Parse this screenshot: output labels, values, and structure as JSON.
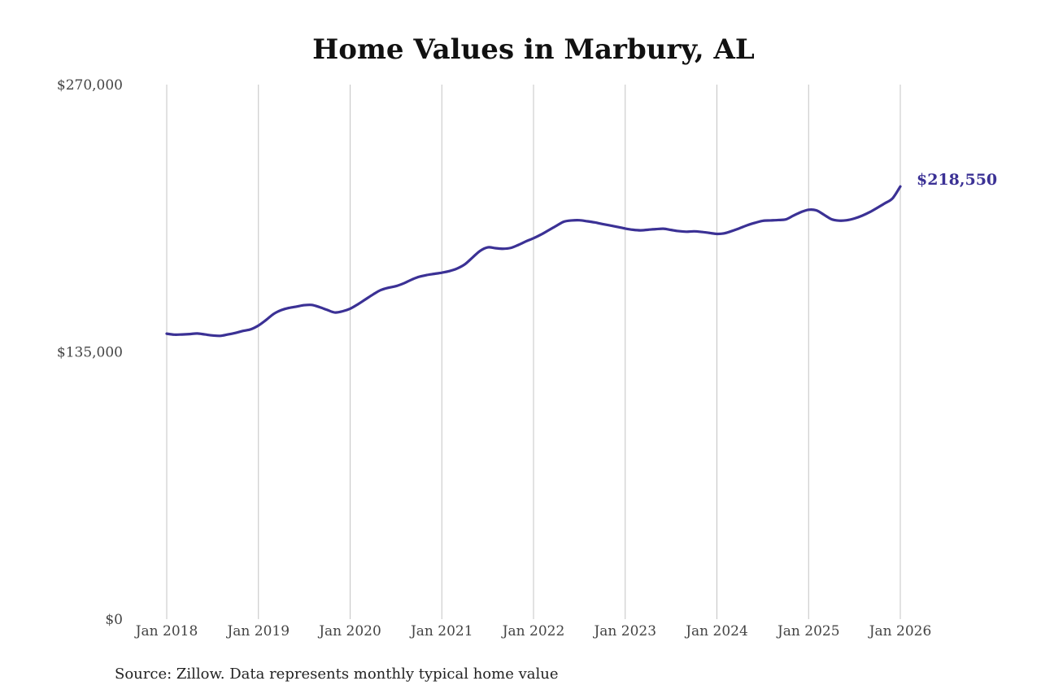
{
  "chart_data": {
    "type": "line",
    "title": "Home Values in Marbury, AL",
    "source": "Source: Zillow. Data represents monthly typical home value",
    "ylim": [
      0,
      270000
    ],
    "xlim": [
      "2018-01",
      "2026-01"
    ],
    "y_ticks": [
      {
        "value": 0,
        "label": "$0"
      },
      {
        "value": 135000,
        "label": "$135,000"
      },
      {
        "value": 270000,
        "label": "$270,000"
      }
    ],
    "x_ticks": [
      {
        "value": "2018-01",
        "label": "Jan 2018"
      },
      {
        "value": "2019-01",
        "label": "Jan 2019"
      },
      {
        "value": "2020-01",
        "label": "Jan 2020"
      },
      {
        "value": "2021-01",
        "label": "Jan 2021"
      },
      {
        "value": "2022-01",
        "label": "Jan 2022"
      },
      {
        "value": "2023-01",
        "label": "Jan 2023"
      },
      {
        "value": "2024-01",
        "label": "Jan 2024"
      },
      {
        "value": "2025-01",
        "label": "Jan 2025"
      },
      {
        "value": "2026-01",
        "label": "Jan 2026"
      }
    ],
    "grid": {
      "vertical": true,
      "horizontal": false
    },
    "line_color": "#3b3195",
    "end_label": "$218,550",
    "series": [
      {
        "points": [
          [
            "2018-01",
            144200
          ],
          [
            "2018-02",
            143700
          ],
          [
            "2018-03",
            143800
          ],
          [
            "2018-04",
            144000
          ],
          [
            "2018-05",
            144300
          ],
          [
            "2018-06",
            143800
          ],
          [
            "2018-07",
            143300
          ],
          [
            "2018-08",
            143100
          ],
          [
            "2018-09",
            143800
          ],
          [
            "2018-10",
            144600
          ],
          [
            "2018-11",
            145600
          ],
          [
            "2018-12",
            146400
          ],
          [
            "2019-01",
            148300
          ],
          [
            "2019-02",
            151100
          ],
          [
            "2019-03",
            154200
          ],
          [
            "2019-04",
            156100
          ],
          [
            "2019-05",
            157200
          ],
          [
            "2019-06",
            157900
          ],
          [
            "2019-07",
            158600
          ],
          [
            "2019-08",
            158700
          ],
          [
            "2019-09",
            157600
          ],
          [
            "2019-10",
            156200
          ],
          [
            "2019-11",
            154900
          ],
          [
            "2019-12",
            155500
          ],
          [
            "2020-01",
            156800
          ],
          [
            "2020-02",
            159000
          ],
          [
            "2020-03",
            161500
          ],
          [
            "2020-04",
            164000
          ],
          [
            "2020-05",
            166200
          ],
          [
            "2020-06",
            167400
          ],
          [
            "2020-07",
            168200
          ],
          [
            "2020-08",
            169600
          ],
          [
            "2020-09",
            171400
          ],
          [
            "2020-10",
            172900
          ],
          [
            "2020-11",
            173800
          ],
          [
            "2020-12",
            174400
          ],
          [
            "2021-01",
            175000
          ],
          [
            "2021-02",
            175800
          ],
          [
            "2021-03",
            177100
          ],
          [
            "2021-04",
            179200
          ],
          [
            "2021-05",
            182600
          ],
          [
            "2021-06",
            186000
          ],
          [
            "2021-07",
            187800
          ],
          [
            "2021-08",
            187400
          ],
          [
            "2021-09",
            187100
          ],
          [
            "2021-10",
            187500
          ],
          [
            "2021-11",
            189000
          ],
          [
            "2021-12",
            190800
          ],
          [
            "2022-01",
            192400
          ],
          [
            "2022-02",
            194300
          ],
          [
            "2022-03",
            196500
          ],
          [
            "2022-04",
            198700
          ],
          [
            "2022-05",
            200800
          ],
          [
            "2022-06",
            201400
          ],
          [
            "2022-07",
            201500
          ],
          [
            "2022-08",
            201000
          ],
          [
            "2022-09",
            200400
          ],
          [
            "2022-10",
            199600
          ],
          [
            "2022-11",
            198900
          ],
          [
            "2022-12",
            198100
          ],
          [
            "2023-01",
            197300
          ],
          [
            "2023-02",
            196700
          ],
          [
            "2023-03",
            196400
          ],
          [
            "2023-04",
            196700
          ],
          [
            "2023-05",
            197000
          ],
          [
            "2023-06",
            197200
          ],
          [
            "2023-07",
            196600
          ],
          [
            "2023-08",
            196000
          ],
          [
            "2023-09",
            195700
          ],
          [
            "2023-10",
            195900
          ],
          [
            "2023-11",
            195600
          ],
          [
            "2023-12",
            195100
          ],
          [
            "2024-01",
            194600
          ],
          [
            "2024-02",
            194900
          ],
          [
            "2024-03",
            196100
          ],
          [
            "2024-04",
            197500
          ],
          [
            "2024-05",
            199000
          ],
          [
            "2024-06",
            200200
          ],
          [
            "2024-07",
            201200
          ],
          [
            "2024-08",
            201400
          ],
          [
            "2024-09",
            201600
          ],
          [
            "2024-10",
            201900
          ],
          [
            "2024-11",
            203800
          ],
          [
            "2024-12",
            205600
          ],
          [
            "2025-01",
            206800
          ],
          [
            "2025-02",
            206500
          ],
          [
            "2025-03",
            204300
          ],
          [
            "2025-04",
            202000
          ],
          [
            "2025-05",
            201300
          ],
          [
            "2025-06",
            201500
          ],
          [
            "2025-07",
            202400
          ],
          [
            "2025-08",
            203800
          ],
          [
            "2025-09",
            205600
          ],
          [
            "2025-10",
            207800
          ],
          [
            "2025-11",
            210100
          ],
          [
            "2025-12",
            212600
          ],
          [
            "2026-01",
            218550
          ]
        ]
      }
    ]
  }
}
